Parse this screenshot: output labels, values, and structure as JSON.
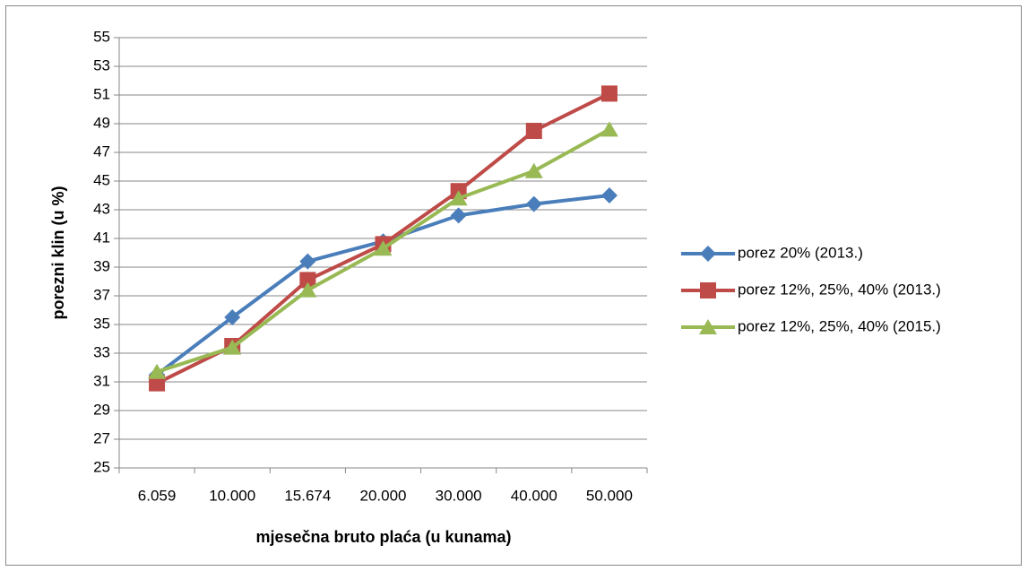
{
  "chart_data": {
    "type": "line",
    "x_label": "mjesečna bruto plaća (u kunama)",
    "y_label": "porezni klin (u %)",
    "categories": [
      "6.059",
      "10.000",
      "15.674",
      "20.000",
      "30.000",
      "40.000",
      "50.000"
    ],
    "series": [
      {
        "name": "porez 20% (2013.)",
        "color": "#4a7ebb",
        "marker": "diamond",
        "values": [
          31.5,
          35.5,
          39.4,
          40.8,
          42.6,
          43.4,
          44.0
        ]
      },
      {
        "name": "porez 12%, 25%, 40% (2013.)",
        "color": "#be4b48",
        "marker": "square",
        "values": [
          30.9,
          33.5,
          38.1,
          40.6,
          44.3,
          48.5,
          51.1
        ]
      },
      {
        "name": "porez 12%, 25%, 40% (2015.)",
        "color": "#98b954",
        "marker": "triangle",
        "values": [
          31.7,
          33.4,
          37.4,
          40.3,
          43.8,
          45.7,
          48.6
        ]
      }
    ],
    "ylim": [
      25,
      55
    ],
    "yticks": [
      25,
      27,
      29,
      31,
      33,
      35,
      37,
      39,
      41,
      43,
      45,
      47,
      49,
      51,
      53,
      55
    ],
    "grid": true,
    "legend": "right"
  }
}
